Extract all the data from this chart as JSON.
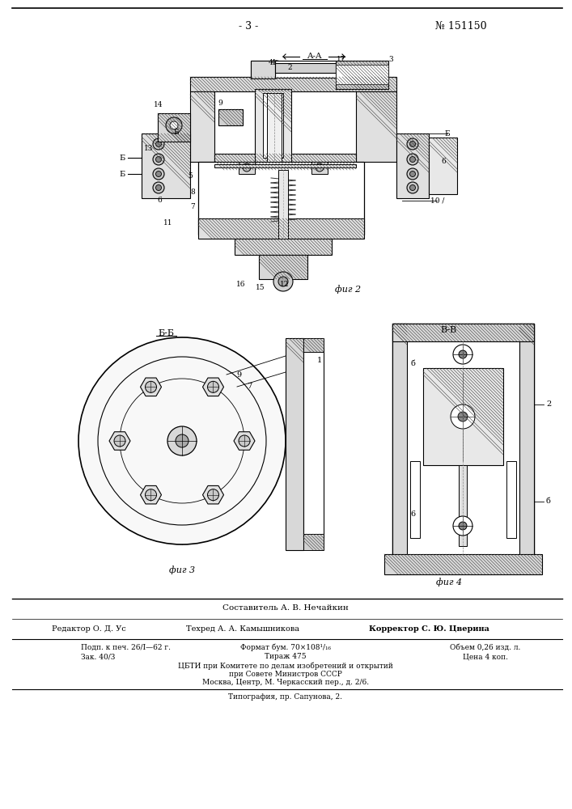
{
  "page_number": "- 3 -",
  "patent_number": "№ 151150",
  "fig2_label": "фиг 2",
  "fig3_label": "фиг 3",
  "fig4_label": "фиг 4",
  "section_aa": "A-A",
  "section_bb": "Б-Б",
  "section_vv": "B-B",
  "footer_composer": "Составитель А. В. Нечайкин",
  "footer_editor": "Редактор О. Д. Ус",
  "footer_tech": "Техред А. А. Камышникова",
  "footer_corrector": "Корректор С. Ю. Цверина",
  "footer_podp": "Подп. к печ. 26/I—62 г.",
  "footer_zak": "Зак. 40/3",
  "footer_format": "Формат бум. 70×108¹/₁₆",
  "footer_tirazh": "Тираж 475",
  "footer_obem": "Объем 0,26 изд. л.",
  "footer_cena": "Цена 4 коп.",
  "footer_cbti": "ЦБТИ при Комитете по делам изобретений и открытий",
  "footer_sovet": "при Совете Министров СССР",
  "footer_moskva": "Москва, Центр, М. Черкасский пер., д. 2/6.",
  "footer_tipografia": "Типография, пр. Сапунова, 2.",
  "bg_color": "#ffffff"
}
